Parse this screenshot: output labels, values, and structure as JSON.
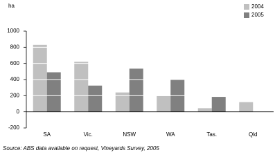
{
  "chart_data": {
    "type": "bar",
    "y_label": "ha",
    "categories": [
      "SA",
      "Vic.",
      "NSW",
      "WA",
      "Tas.",
      "Qld"
    ],
    "series": [
      {
        "name": "2004",
        "color": "#c0c0c0",
        "values": [
          830,
          620,
          240,
          195,
          45,
          120
        ]
      },
      {
        "name": "2005",
        "color": "#808080",
        "values": [
          490,
          325,
          535,
          400,
          185,
          null
        ]
      }
    ],
    "ylim": [
      -200,
      1000
    ],
    "yticks": [
      -200,
      0,
      200,
      400,
      600,
      800,
      1000
    ],
    "grid": true,
    "legend": "top-right",
    "source": "Source: ABS data available on request, Vineyards Survey, 2005"
  }
}
